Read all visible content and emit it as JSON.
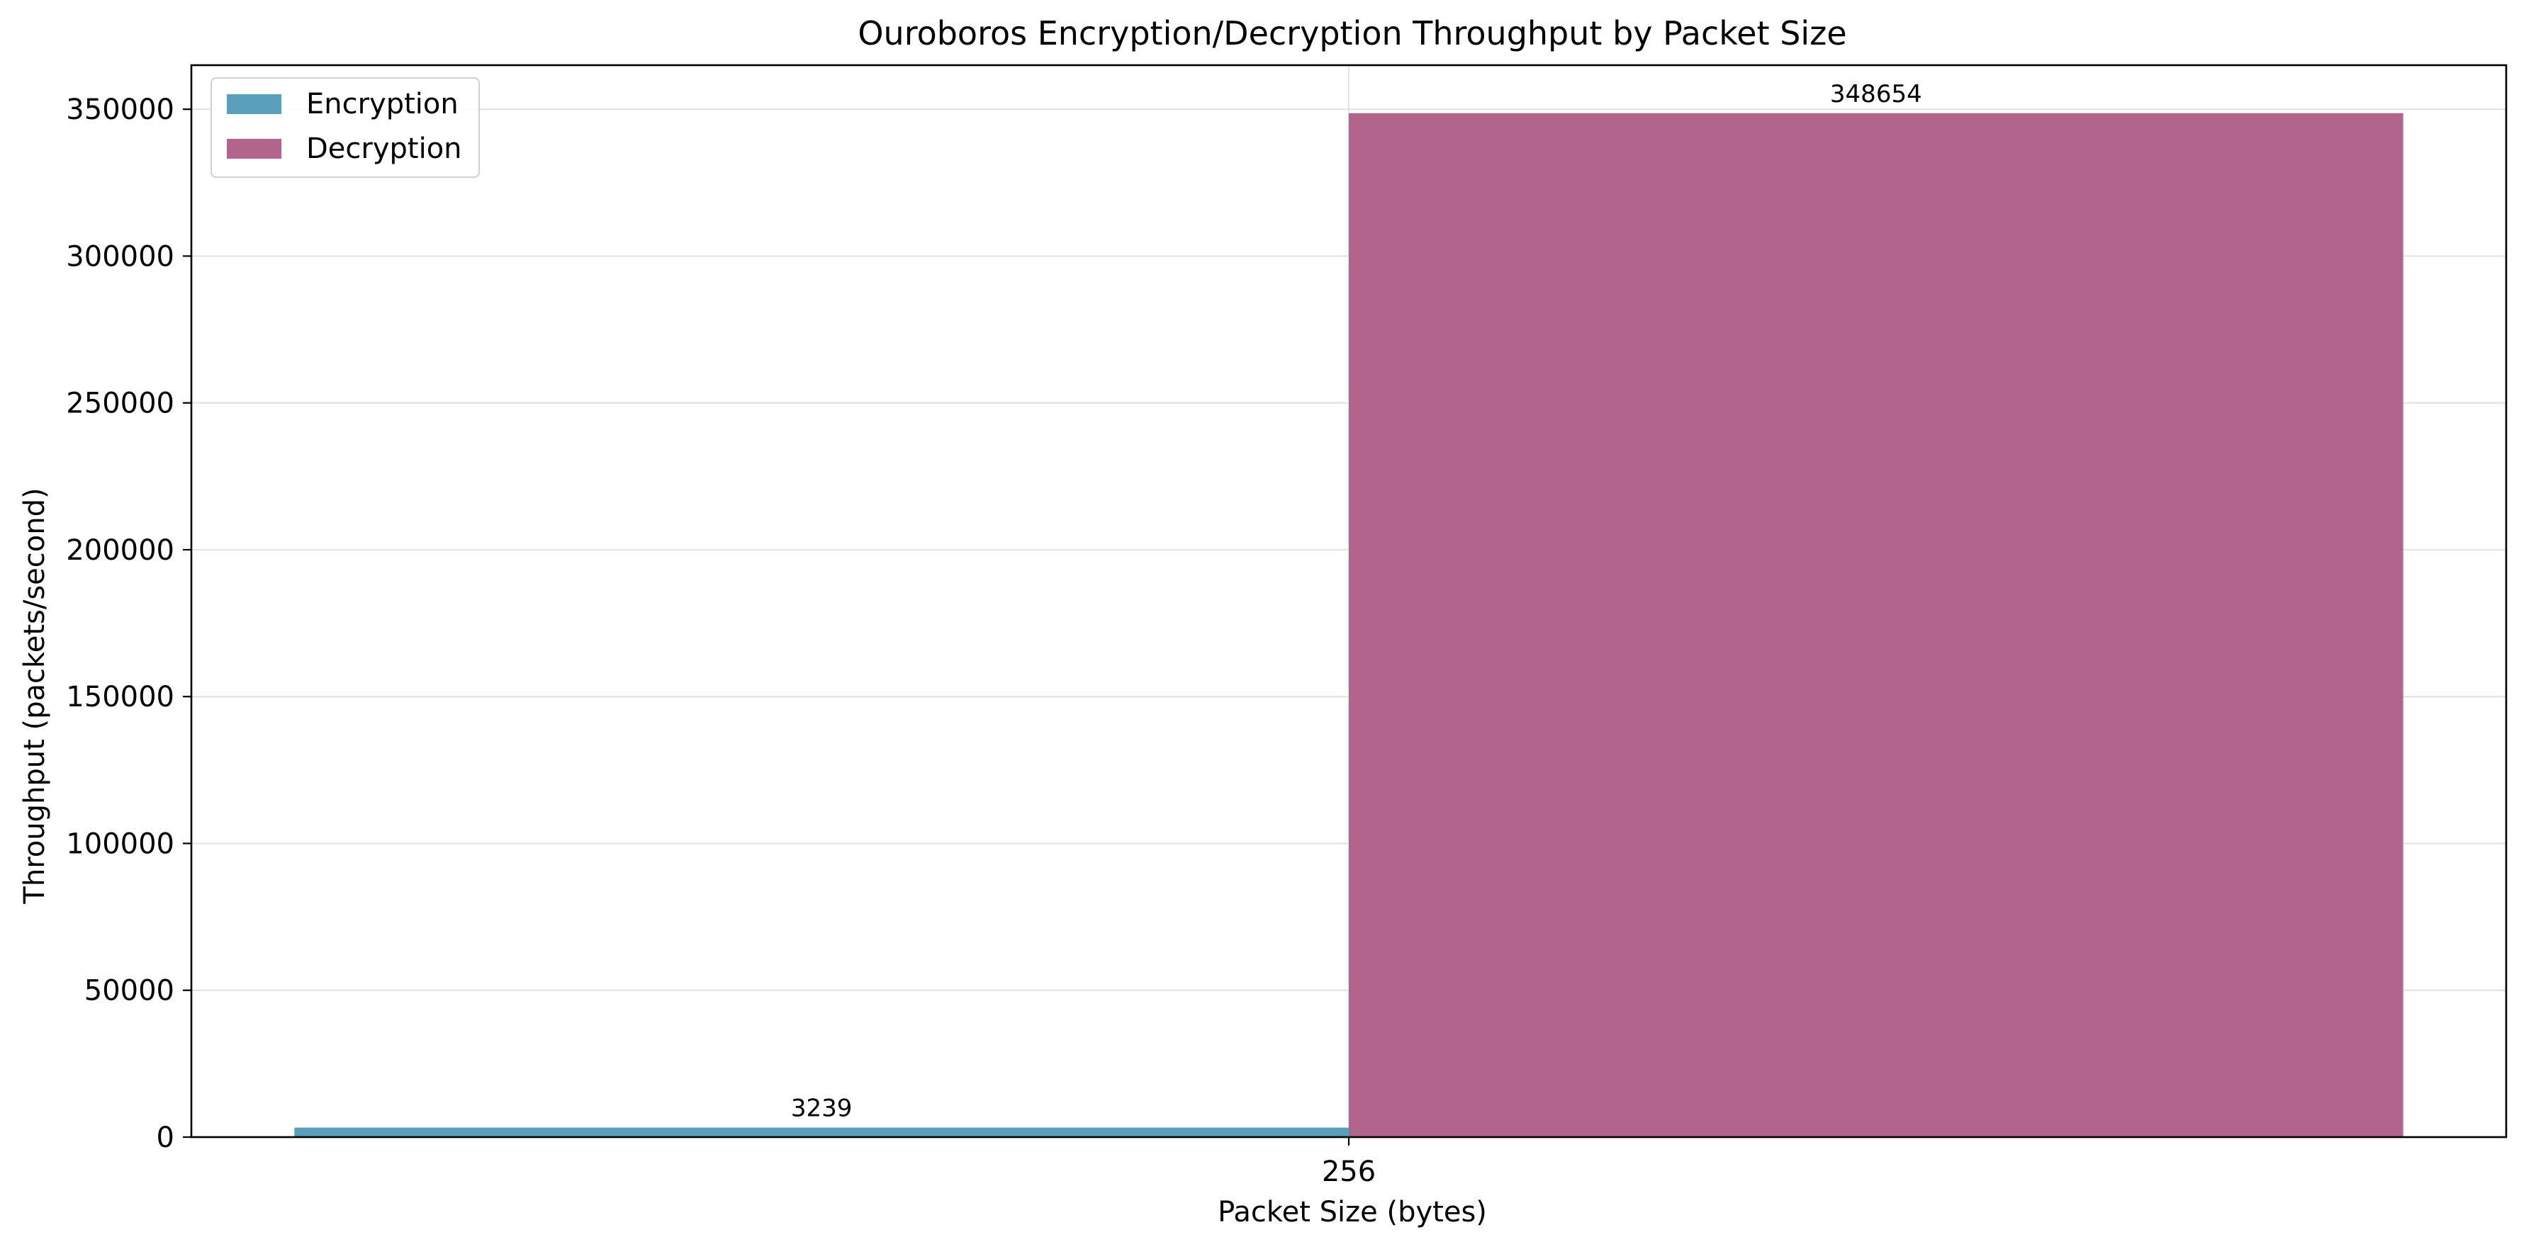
{
  "chart_data": {
    "type": "bar",
    "title": "Ouroboros Encryption/Decryption Throughput by Packet Size",
    "xlabel": "Packet Size (bytes)",
    "ylabel": "Throughput (packets/second)",
    "categories": [
      "256"
    ],
    "series": [
      {
        "name": "Encryption",
        "values": [
          3239
        ],
        "color": "#5a9fbc"
      },
      {
        "name": "Decryption",
        "values": [
          348654
        ],
        "color": "#b3648c"
      }
    ],
    "ylim": [
      0,
      365000
    ],
    "yticks": [
      0,
      50000,
      100000,
      150000,
      200000,
      250000,
      300000,
      350000
    ],
    "grid": true,
    "legend": "top-left"
  }
}
